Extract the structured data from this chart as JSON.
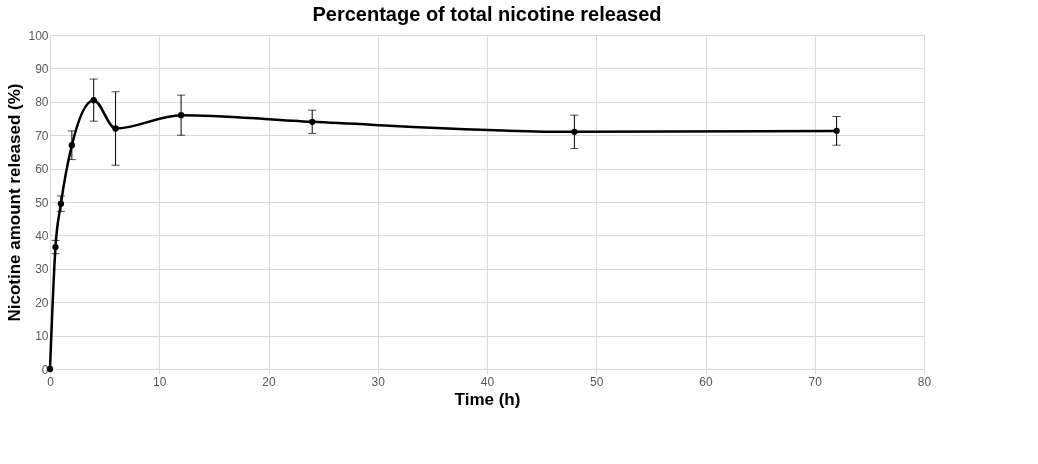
{
  "chart_data": {
    "type": "line",
    "title": "Percentage of total nicotine released",
    "xlabel": "Time (h)",
    "ylabel": "Nicotine amount released (%)",
    "x": [
      0,
      0.5,
      1,
      2,
      4,
      6,
      12,
      24,
      48,
      72
    ],
    "series": [
      {
        "color": "#000000",
        "values": [
          0,
          36.5,
          49.5,
          67,
          80.5,
          72,
          76,
          74,
          71,
          71.3
        ],
        "errors": [
          null,
          2,
          2.3,
          4.3,
          6.3,
          11,
          6,
          3.5,
          5,
          4.3
        ]
      }
    ],
    "xlim": [
      0,
      80
    ],
    "xticks": [
      0,
      10,
      20,
      30,
      40,
      50,
      60,
      70,
      80
    ],
    "ylim": [
      0,
      100
    ],
    "yticks": [
      0,
      10,
      20,
      30,
      40,
      50,
      60,
      70,
      80,
      90,
      100
    ],
    "grid": true,
    "marker": "circle",
    "line_style": "solid"
  }
}
